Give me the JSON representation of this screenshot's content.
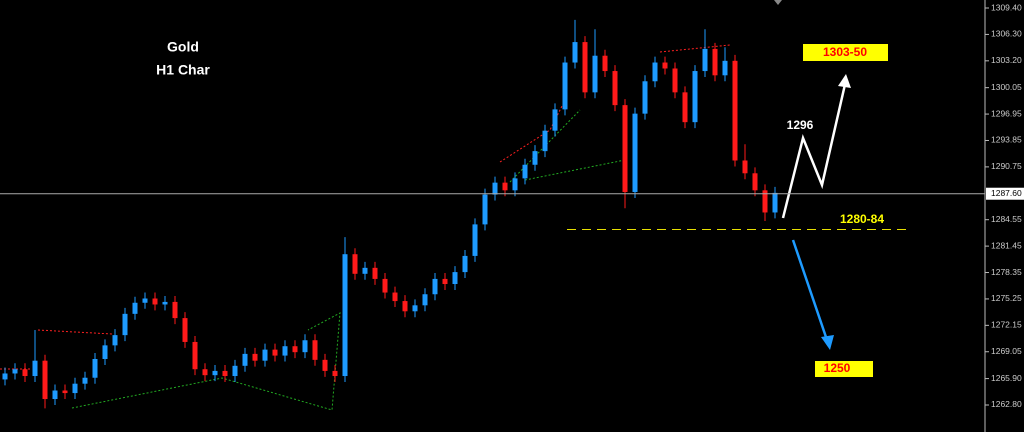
{
  "chart_data": {
    "type": "candlestick",
    "title": "Gold",
    "subtitle": "H1 Char",
    "up_color": "#1e9bff",
    "down_color": "#ff1a1a",
    "open": [
      1265.8,
      1266.5,
      1267.0,
      1266.2,
      1268.0,
      1263.5,
      1264.5,
      1264.2,
      1265.3,
      1266.0,
      1268.2,
      1269.8,
      1271.0,
      1273.5,
      1274.8,
      1275.3,
      1274.6,
      1274.9,
      1273.0,
      1270.2,
      1267.0,
      1266.3,
      1266.8,
      1266.2,
      1267.4,
      1268.8,
      1268.0,
      1269.3,
      1268.6,
      1269.7,
      1269.0,
      1270.4,
      1268.1,
      1266.8,
      1266.2,
      1280.5,
      1278.2,
      1278.9,
      1277.6,
      1276.0,
      1275.0,
      1273.8,
      1274.5,
      1275.8,
      1277.6,
      1277.0,
      1278.4,
      1280.3,
      1284.0,
      1287.5,
      1288.9,
      1288.0,
      1289.4,
      1291.0,
      1292.6,
      1295.0,
      1297.5,
      1303.0,
      1305.4,
      1299.5,
      1303.8,
      1302.0,
      1298.0,
      1287.8,
      1297.0,
      1300.8,
      1303.0,
      1302.3,
      1299.5,
      1296.0,
      1302.0,
      1304.6,
      1301.5,
      1303.2,
      1291.5,
      1290.0,
      1288.0,
      1285.4
    ],
    "high": [
      1267.2,
      1267.7,
      1267.7,
      1271.6,
      1268.7,
      1265.2,
      1265.2,
      1266.0,
      1266.7,
      1268.9,
      1270.5,
      1271.7,
      1274.2,
      1275.5,
      1276.0,
      1276.0,
      1275.6,
      1275.6,
      1273.7,
      1270.9,
      1267.7,
      1267.5,
      1267.5,
      1268.1,
      1269.5,
      1269.5,
      1270.0,
      1270.0,
      1270.4,
      1270.4,
      1271.1,
      1271.1,
      1268.8,
      1267.5,
      1282.5,
      1281.2,
      1279.6,
      1279.6,
      1278.3,
      1276.7,
      1275.7,
      1275.2,
      1276.5,
      1278.3,
      1278.3,
      1279.1,
      1281.0,
      1284.7,
      1288.2,
      1289.6,
      1289.6,
      1290.1,
      1291.7,
      1293.3,
      1295.7,
      1298.2,
      1303.7,
      1308.0,
      1306.1,
      1306.9,
      1304.5,
      1302.7,
      1298.7,
      1297.7,
      1301.5,
      1303.7,
      1303.7,
      1303.0,
      1300.2,
      1302.7,
      1306.9,
      1305.3,
      1304.8,
      1303.9,
      1293.4,
      1290.7,
      1288.7,
      1288.4
    ],
    "low": [
      1265.1,
      1265.8,
      1265.5,
      1265.5,
      1262.4,
      1262.8,
      1263.5,
      1263.5,
      1264.6,
      1265.3,
      1267.5,
      1269.1,
      1270.3,
      1272.8,
      1274.1,
      1273.9,
      1273.9,
      1272.3,
      1269.5,
      1266.3,
      1265.6,
      1265.6,
      1265.5,
      1265.5,
      1266.7,
      1267.3,
      1267.3,
      1267.9,
      1267.9,
      1268.3,
      1268.3,
      1267.4,
      1266.1,
      1265.5,
      1265.5,
      1277.5,
      1277.5,
      1276.9,
      1275.3,
      1274.3,
      1273.1,
      1273.1,
      1273.8,
      1275.1,
      1276.3,
      1276.3,
      1277.7,
      1279.6,
      1283.3,
      1286.8,
      1287.3,
      1287.3,
      1288.7,
      1290.3,
      1291.9,
      1294.3,
      1296.8,
      1302.3,
      1298.8,
      1298.8,
      1301.3,
      1297.3,
      1285.9,
      1287.1,
      1296.3,
      1300.1,
      1301.6,
      1298.8,
      1295.3,
      1295.3,
      1301.3,
      1300.8,
      1300.8,
      1290.8,
      1289.3,
      1287.3,
      1284.4,
      1284.7
    ],
    "close": [
      1266.5,
      1267.0,
      1266.2,
      1268.0,
      1263.5,
      1264.5,
      1264.2,
      1265.3,
      1266.0,
      1268.2,
      1269.8,
      1271.0,
      1273.5,
      1274.8,
      1275.3,
      1274.6,
      1274.9,
      1273.0,
      1270.2,
      1267.0,
      1266.3,
      1266.8,
      1266.2,
      1267.4,
      1268.8,
      1268.0,
      1269.3,
      1268.6,
      1269.7,
      1269.0,
      1270.4,
      1268.1,
      1266.8,
      1266.2,
      1280.5,
      1278.2,
      1278.9,
      1277.6,
      1276.0,
      1275.0,
      1273.8,
      1274.5,
      1275.8,
      1277.6,
      1277.0,
      1278.4,
      1280.3,
      1284.0,
      1287.5,
      1288.9,
      1288.0,
      1289.4,
      1291.0,
      1292.6,
      1295.0,
      1297.5,
      1303.0,
      1305.4,
      1299.5,
      1303.8,
      1302.0,
      1298.0,
      1287.8,
      1297.0,
      1300.8,
      1303.0,
      1302.3,
      1299.5,
      1296.0,
      1302.0,
      1304.6,
      1301.5,
      1303.2,
      1291.5,
      1290.0,
      1288.0,
      1285.4,
      1287.7
    ],
    "ylim": [
      1259.63,
      1310.34
    ],
    "yticks": [
      {
        "value": 1309.4,
        "label": "1309.40"
      },
      {
        "value": 1306.3,
        "label": "1306.30"
      },
      {
        "value": 1303.2,
        "label": "1303.20"
      },
      {
        "value": 1300.05,
        "label": "1300.05"
      },
      {
        "value": 1296.95,
        "label": "1296.95"
      },
      {
        "value": 1293.85,
        "label": "1293.85"
      },
      {
        "value": 1290.75,
        "label": "1290.75"
      },
      {
        "value": 1284.55,
        "label": "1284.55"
      },
      {
        "value": 1281.45,
        "label": "1281.45"
      },
      {
        "value": 1278.35,
        "label": "1278.35"
      },
      {
        "value": 1275.25,
        "label": "1275.25"
      },
      {
        "value": 1272.15,
        "label": "1272.15"
      },
      {
        "value": 1269.05,
        "label": "1269.05"
      },
      {
        "value": 1265.9,
        "label": "1265.90"
      },
      {
        "value": 1262.8,
        "label": "1262.80"
      }
    ],
    "current_price": {
      "value": 1287.6,
      "label": "1287.60"
    },
    "support_level": 1283.4,
    "annotations": {
      "target_up": "1303-50",
      "pivot": "1296",
      "support": "1280-84",
      "target_down": "1250"
    }
  }
}
